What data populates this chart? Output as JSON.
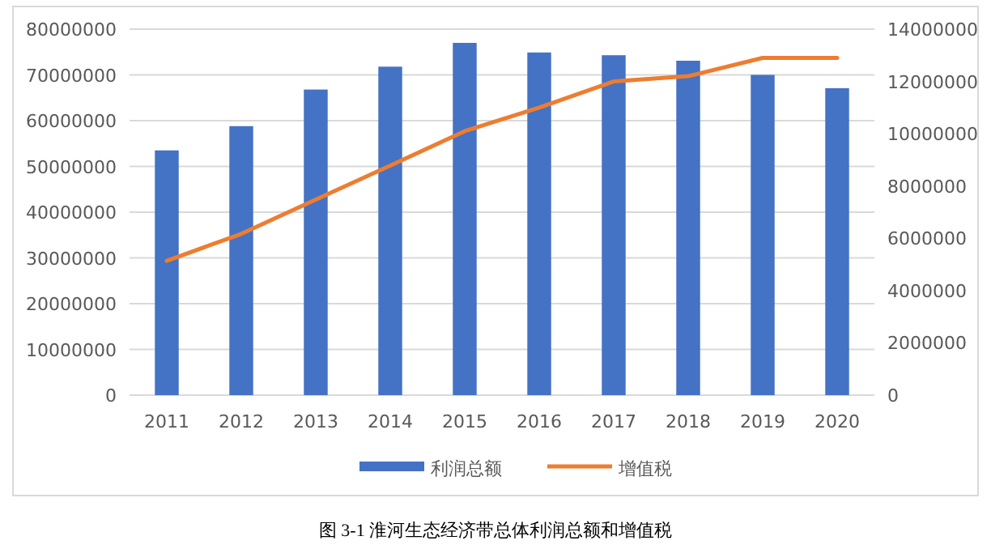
{
  "chart_data": {
    "type": "bar",
    "categories": [
      "2011",
      "2012",
      "2013",
      "2014",
      "2015",
      "2016",
      "2017",
      "2018",
      "2019",
      "2020"
    ],
    "series": [
      {
        "name": "利润总额",
        "color": "#4472c4",
        "values": [
          53500000,
          58800000,
          66800000,
          71800000,
          77000000,
          74900000,
          74300000,
          73100000,
          70000000,
          67100000
        ]
      },
      {
        "name": "增值税",
        "type": "line",
        "axis": "y2",
        "color": "#ed7d31",
        "values": [
          5140000,
          6170000,
          7480000,
          8780000,
          10100000,
          11000000,
          12000000,
          12200000,
          12900000,
          12900000
        ]
      }
    ],
    "ylim": [
      0,
      80000000
    ],
    "yticks": [
      0,
      10000000,
      20000000,
      30000000,
      40000000,
      50000000,
      60000000,
      70000000,
      80000000
    ],
    "y2lim": [
      0,
      14000000
    ],
    "y2ticks": [
      0,
      2000000,
      4000000,
      6000000,
      8000000,
      10000000,
      12000000,
      14000000
    ],
    "grid": "y",
    "legend": "bottom",
    "annotations": [
      "图 3-1 淮河生态经济带总体利润总额和增值税"
    ]
  }
}
